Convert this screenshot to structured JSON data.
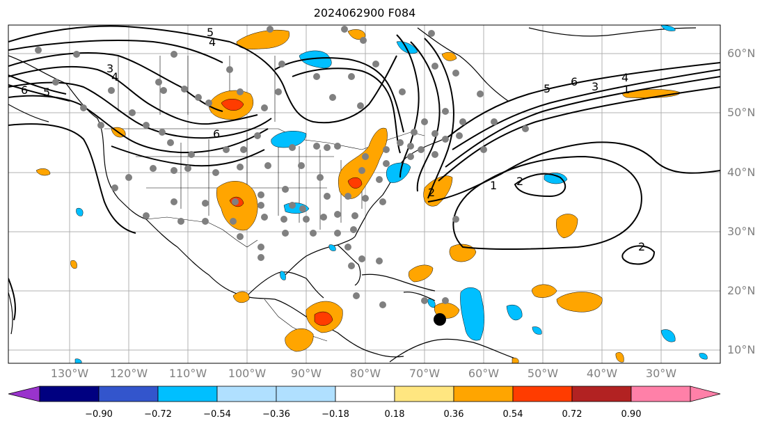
{
  "title": "2024062900 F084",
  "lat_labels": [
    "60°N",
    "50°N",
    "40°N",
    "30°N",
    "20°N",
    "10°N"
  ],
  "lon_labels": [
    "130°W",
    "120°W",
    "110°W",
    "100°W",
    "90°W",
    "80°W",
    "70°W",
    "60°W",
    "50°W",
    "40°W",
    "30°W"
  ],
  "contour_labels": [
    "5",
    "4",
    "3",
    "4",
    "6",
    "5",
    "6",
    "2",
    "1",
    "2",
    "2",
    "4",
    "5",
    "6",
    "3",
    "1"
  ],
  "colorbar": {
    "ticks": [
      "−0.90",
      "−0.72",
      "−0.54",
      "−0.36",
      "−0.18",
      "0.18",
      "0.36",
      "0.54",
      "0.72",
      "0.90"
    ],
    "colors": [
      "#9933cc",
      "#000080",
      "#3355cc",
      "#00bfff",
      "#b0e0ff",
      "#ffffff",
      "#ffe680",
      "#ffa500",
      "#ff3c00",
      "#b22222",
      "#ff80a8"
    ]
  },
  "marker_colors": {
    "stations": "#808080",
    "storm": "#000000"
  }
}
